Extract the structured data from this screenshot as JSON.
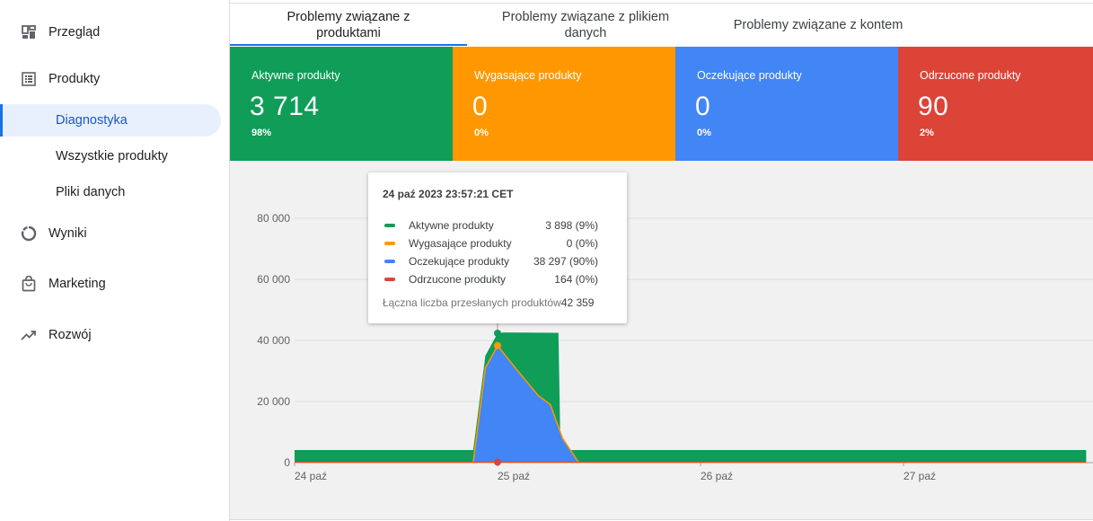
{
  "sidebar": {
    "items": [
      {
        "label": "Przegląd",
        "icon": "dashboard-icon"
      },
      {
        "label": "Produkty",
        "icon": "list-icon"
      },
      {
        "label": "Wyniki",
        "icon": "donut-chart-icon"
      },
      {
        "label": "Marketing",
        "icon": "shopping-bag-icon"
      },
      {
        "label": "Rozwój",
        "icon": "trending-up-icon"
      }
    ],
    "subitems": [
      {
        "label": "Diagnostyka",
        "active": true
      },
      {
        "label": "Wszystkie produkty",
        "active": false
      },
      {
        "label": "Pliki danych",
        "active": false
      }
    ]
  },
  "tabs": [
    {
      "line1": "Problemy związane z",
      "line2": "produktami",
      "active": true
    },
    {
      "line1": "Problemy związane z plikiem",
      "line2": "danych",
      "active": false
    },
    {
      "line1": "Problemy związane z kontem",
      "line2": "",
      "active": false
    }
  ],
  "cards": [
    {
      "title": "Aktywne produkty",
      "value": "3 714",
      "pct": "98%",
      "color": "#0f9d58"
    },
    {
      "title": "Wygasające produkty",
      "value": "0",
      "pct": "0%",
      "color": "#ff9800"
    },
    {
      "title": "Oczekujące produkty",
      "value": "0",
      "pct": "0%",
      "color": "#4285f4"
    },
    {
      "title": "Odrzucone produkty",
      "value": "90",
      "pct": "2%",
      "color": "#db4437"
    }
  ],
  "tooltip": {
    "title": "24 paź 2023 23:57:21 CET",
    "rows": [
      {
        "name": "Aktywne produkty",
        "value": "3 898 (9%)",
        "color": "#0f9d58"
      },
      {
        "name": "Wygasające produkty",
        "value": "0 (0%)",
        "color": "#ff9800"
      },
      {
        "name": "Oczekujące produkty",
        "value": "38 297 (90%)",
        "color": "#4285f4"
      },
      {
        "name": "Odrzucone produkty",
        "value": "164 (0%)",
        "color": "#db4437"
      }
    ],
    "total_label": "Łączna liczba przesłanych produktów",
    "total_value": "42 359"
  },
  "chart_data": {
    "type": "area",
    "y_ticks": [
      0,
      20000,
      40000,
      60000,
      80000
    ],
    "y_tick_labels": [
      "0",
      "20 000",
      "40 000",
      "60 000",
      "80 000"
    ],
    "ylim": [
      0,
      80000
    ],
    "x_ticks": [
      0,
      1,
      2,
      3
    ],
    "x_tick_labels": [
      "24 paź",
      "25 paź",
      "26 paź",
      "27 paź"
    ],
    "grid": true,
    "series": [
      {
        "name": "Aktywne produkty",
        "color": "#0f9d58",
        "x": [
          0,
          0.88,
          0.94,
          1.0,
          1.03,
          1.3,
          1.31,
          1.4,
          1.41,
          3.9
        ],
        "y": [
          4100,
          4100,
          35000,
          42359,
          42600,
          42500,
          4100,
          4100,
          4100,
          4100
        ]
      },
      {
        "name": "Oczekujące produkty",
        "color": "#4285f4",
        "x": [
          0.88,
          0.94,
          1.0,
          1.1,
          1.2,
          1.26,
          1.32,
          1.4
        ],
        "y": [
          0,
          31000,
          38297,
          30000,
          22000,
          19000,
          8000,
          0
        ]
      },
      {
        "name": "Wygasające produkty",
        "color": "#ff9800",
        "x": [
          0,
          3.9
        ],
        "y": [
          0,
          0
        ]
      },
      {
        "name": "Odrzucone produkty",
        "color": "#db4437",
        "x": [
          0,
          3.9
        ],
        "y": [
          164,
          164
        ]
      }
    ],
    "highlight": {
      "x": 1.0,
      "active": 42359,
      "expiring": 38297,
      "rejected": 164
    }
  }
}
